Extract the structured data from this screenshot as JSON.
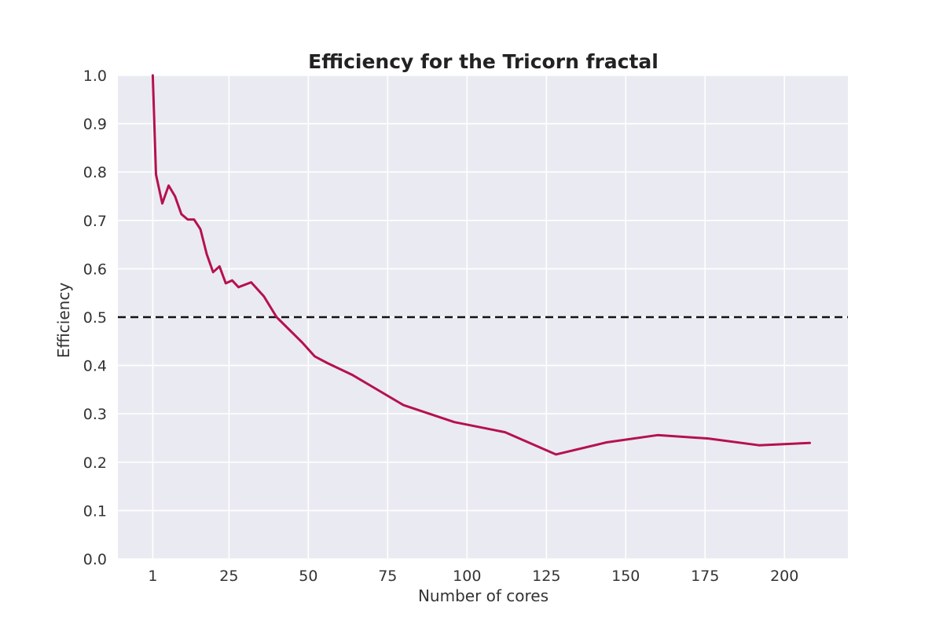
{
  "chart_data": {
    "type": "line",
    "title": "Efficiency for the Tricorn fractal",
    "xlabel": "Number of cores",
    "ylabel": "Efficiency",
    "xlim": [
      -10,
      220
    ],
    "ylim": [
      0.0,
      1.0
    ],
    "xticks": [
      1,
      25,
      50,
      75,
      100,
      125,
      150,
      175,
      200
    ],
    "yticks": [
      0.0,
      0.1,
      0.2,
      0.3,
      0.4,
      0.5,
      0.6,
      0.7,
      0.8,
      0.9,
      1.0
    ],
    "ytick_labels": [
      "0.0",
      "0.1",
      "0.2",
      "0.3",
      "0.4",
      "0.5",
      "0.6",
      "0.7",
      "0.8",
      "0.9",
      "1.0"
    ],
    "grid": true,
    "series": [
      {
        "color": "#b5114f",
        "x": [
          1,
          2,
          4,
          6,
          8,
          10,
          12,
          14,
          16,
          18,
          20,
          22,
          24,
          26,
          28,
          32,
          36,
          40,
          48,
          52,
          56,
          64,
          72,
          80,
          96,
          112,
          128,
          144,
          160,
          176,
          192,
          208
        ],
        "y": [
          1.0,
          0.795,
          0.735,
          0.772,
          0.75,
          0.713,
          0.702,
          0.702,
          0.682,
          0.63,
          0.593,
          0.605,
          0.57,
          0.576,
          0.562,
          0.572,
          0.543,
          0.5,
          0.448,
          0.419,
          0.405,
          0.38,
          0.349,
          0.318,
          0.283,
          0.262,
          0.216,
          0.241,
          0.256,
          0.249,
          0.235,
          0.24
        ]
      }
    ],
    "reference_lines": [
      {
        "axis": "y",
        "value": 0.5,
        "style": "dashed",
        "color": "#111111"
      }
    ]
  }
}
